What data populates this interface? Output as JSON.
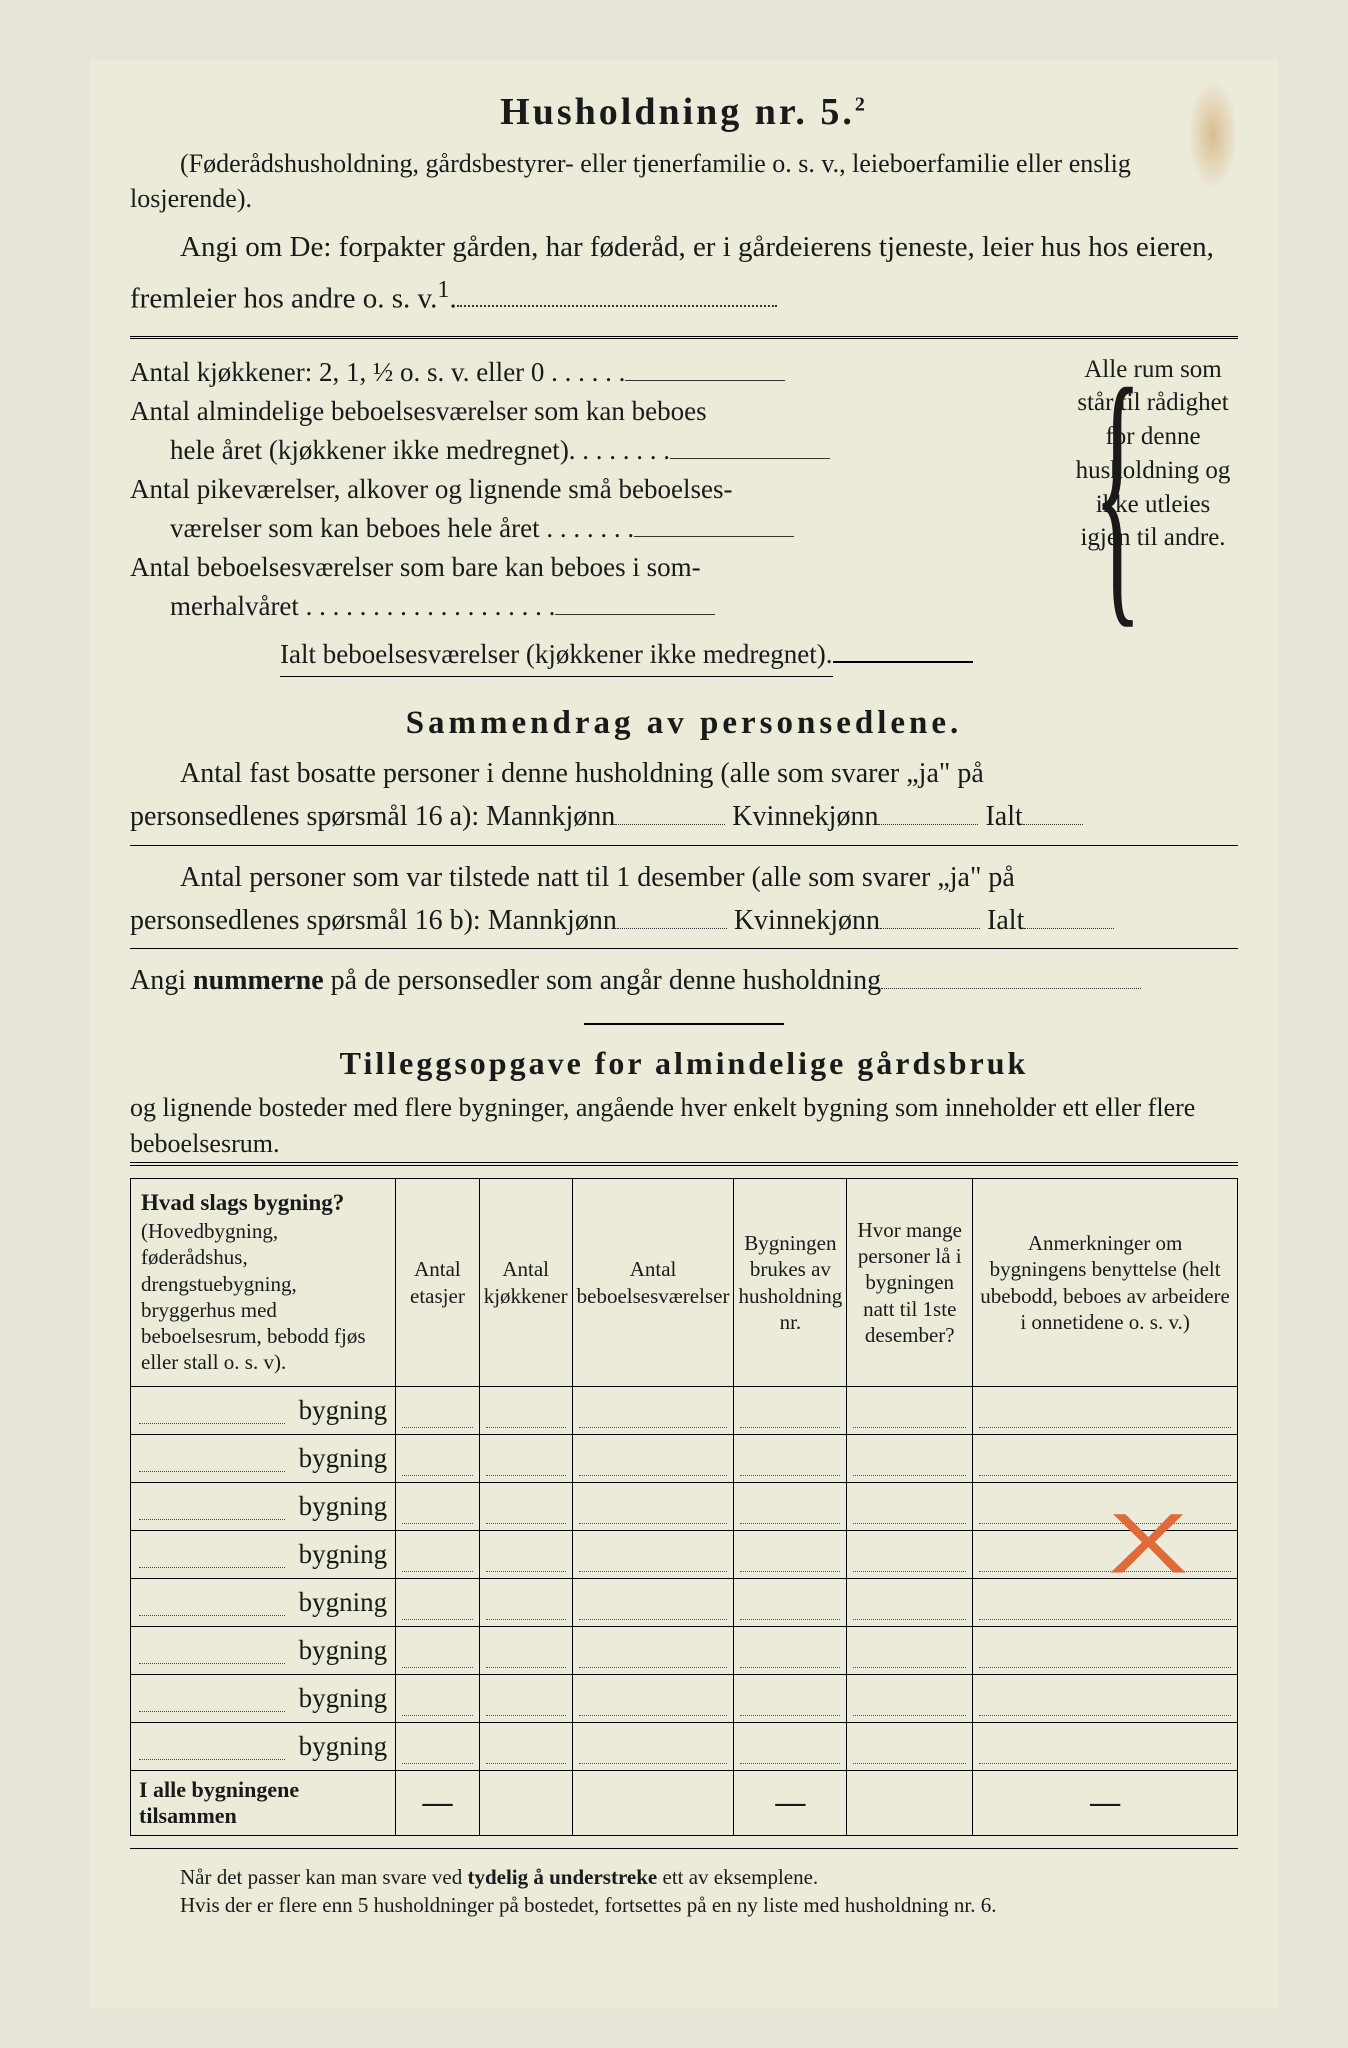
{
  "title": "Husholdning nr. 5.",
  "title_sup": "2",
  "paren": "(Føderådshusholdning, gårdsbestyrer- eller tjenerfamilie o. s. v., leieboerfamilie eller enslig losjerende).",
  "angi": "Angi om De:  forpakter gården, har føderåd, er i gårdeierens tjeneste, leier hus hos eieren, fremleier hos andre o. s. v.",
  "angi_sup": "1",
  "rooms": {
    "kitchen": "Antal kjøkkener: 2, 1, ½ o. s. v. eller 0 . . . . . .",
    "alm1": "Antal almindelige beboelsesværelser som kan beboes",
    "alm2": "hele året (kjøkkener ikke medregnet). . . . . . . .",
    "pike1": "Antal pikeværelser, alkover og lignende små beboelses-",
    "pike2": "værelser som kan beboes hele året . . . . . . .",
    "som1": "Antal beboelsesværelser som bare kan beboes i som-",
    "som2": "merhalvåret . . . . . . . . . . . . . . . . . . .",
    "ialt": "Ialt beboelsesværelser  (kjøkkener ikke medregnet).",
    "side": "Alle rum som står til rådighet for denne husholdning og ikke utleies igjen til andre."
  },
  "summary": {
    "heading": "Sammendrag av personsedlene.",
    "l1a": "Antal fast bosatte personer i denne husholdning (alle som svarer „ja\" på",
    "l1b": "personsedlenes spørsmål 16 a): Mannkjønn",
    "kvin": "Kvinnekjønn",
    "ialt": "Ialt",
    "l2a": "Antal personer som var tilstede natt til 1 desember (alle som svarer „ja\" på",
    "l2b": "personsedlenes spørsmål 16 b): Mannkjønn",
    "l3": "Angi nummerne på de personsedler som angår denne husholdning"
  },
  "tillegs": {
    "heading": "Tilleggsopgave for almindelige gårdsbruk",
    "sub": "og lignende bosteder med flere bygninger, angående hver enkelt bygning som inneholder ett eller flere beboelsesrum."
  },
  "table": {
    "h1a": "Hvad slags bygning?",
    "h1b": "(Hovedbygning, føderådshus, drengstuebygning, bryggerhus med beboelsesrum, bebodd fjøs eller stall o. s. v).",
    "h2": "Antal etasjer",
    "h3": "Antal kjøkkener",
    "h4": "Antal beboelsesværelser",
    "h5": "Bygningen brukes av husholdning nr.",
    "h6": "Hvor mange personer lå i bygningen natt til 1ste desember?",
    "h7": "Anmerkninger om bygningens benyttelse (helt ubebodd, beboes av arbeidere i onnetidene o. s. v.)",
    "byg": "bygning",
    "rows": 8,
    "total": "I alle bygningene tilsammen"
  },
  "foot1": "Når det passer kan man svare ved tydelig å understreke ett av eksemplene.",
  "foot2": "Hvis der er flere enn 5 husholdninger på bostedet, fortsettes på en ny liste med husholdning nr. 6.",
  "colors": {
    "page_bg": "#ecead9",
    "text": "#1a1a1a",
    "mark": "#e06b3a"
  }
}
